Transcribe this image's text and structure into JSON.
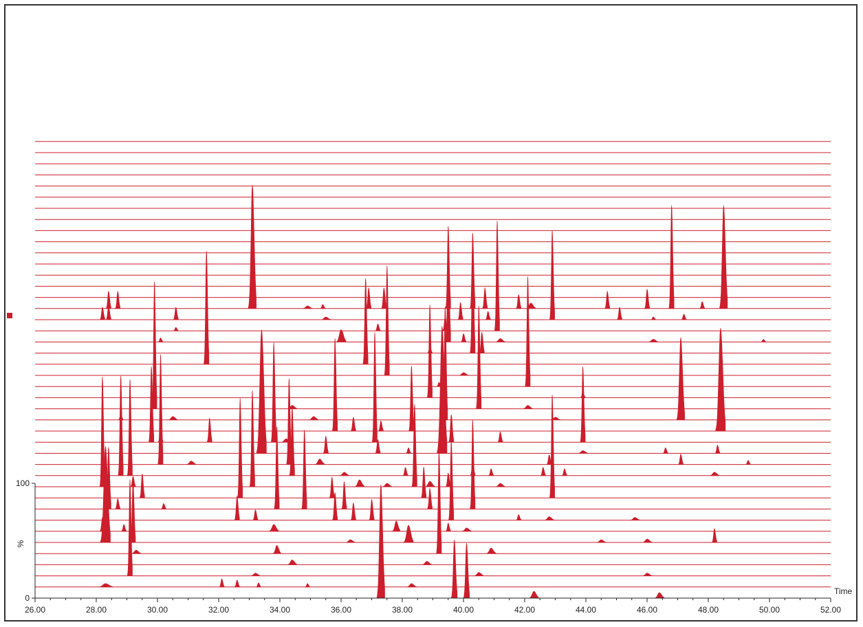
{
  "colors": {
    "trace": "#cc1e2c",
    "axis": "#222222",
    "frame": "#333333"
  },
  "chart_data": {
    "type": "line",
    "title": "",
    "xlabel": "Time",
    "ylabel": "%",
    "y_ticks": [
      "100",
      "0"
    ],
    "xlim": [
      26.0,
      52.0
    ],
    "ylim": [
      0,
      100
    ],
    "x_ticks": [
      "26.00",
      "28.00",
      "30.00",
      "32.00",
      "34.00",
      "36.00",
      "38.00",
      "40.00",
      "42.00",
      "44.00",
      "46.00",
      "48.00",
      "50.00",
      "52.00"
    ],
    "trace_count": 42,
    "grid": false,
    "legend": "none",
    "series": [
      {
        "baseline": 0,
        "peaks": [
          [
            37.3,
            165,
            0.08
          ],
          [
            39.7,
            85,
            0.06
          ],
          [
            40.1,
            80,
            0.06
          ],
          [
            42.3,
            10,
            0.1
          ],
          [
            46.4,
            8,
            0.1
          ]
        ]
      },
      {
        "baseline": 1,
        "peaks": [
          [
            28.3,
            5,
            0.15
          ],
          [
            32.1,
            12,
            0.05
          ],
          [
            32.6,
            10,
            0.05
          ],
          [
            33.3,
            6,
            0.05
          ],
          [
            34.9,
            5,
            0.05
          ],
          [
            38.3,
            5,
            0.1
          ]
        ]
      },
      {
        "baseline": 2,
        "peaks": [
          [
            29.1,
            140,
            0.05
          ],
          [
            33.2,
            4,
            0.1
          ],
          [
            40.5,
            5,
            0.1
          ],
          [
            46.0,
            4,
            0.1
          ]
        ]
      },
      {
        "baseline": 3,
        "peaks": [
          [
            34.4,
            7,
            0.1
          ],
          [
            38.8,
            5,
            0.1
          ]
        ]
      },
      {
        "baseline": 4,
        "peaks": [
          [
            29.3,
            5,
            0.1
          ],
          [
            33.9,
            12,
            0.08
          ],
          [
            39.2,
            150,
            0.05
          ],
          [
            40.9,
            8,
            0.1
          ]
        ]
      },
      {
        "baseline": 5,
        "peaks": [
          [
            28.3,
            140,
            0.1
          ],
          [
            29.2,
            90,
            0.05
          ],
          [
            36.3,
            4,
            0.1
          ],
          [
            38.2,
            25,
            0.1
          ],
          [
            44.5,
            4,
            0.1
          ],
          [
            46.0,
            5,
            0.1
          ],
          [
            48.2,
            20,
            0.05
          ]
        ]
      },
      {
        "baseline": 6,
        "peaks": [
          [
            28.2,
            20,
            0.05
          ],
          [
            28.9,
            10,
            0.05
          ],
          [
            33.8,
            10,
            0.1
          ],
          [
            37.8,
            15,
            0.08
          ],
          [
            39.5,
            12,
            0.05
          ],
          [
            40.1,
            5,
            0.1
          ]
        ]
      },
      {
        "baseline": 7,
        "peaks": [
          [
            32.6,
            35,
            0.05
          ],
          [
            33.2,
            15,
            0.05
          ],
          [
            35.8,
            40,
            0.05
          ],
          [
            36.4,
            25,
            0.05
          ],
          [
            37.0,
            30,
            0.05
          ],
          [
            39.6,
            115,
            0.05
          ],
          [
            41.8,
            8,
            0.05
          ],
          [
            42.8,
            5,
            0.1
          ],
          [
            45.6,
            4,
            0.1
          ]
        ]
      },
      {
        "baseline": 8,
        "peaks": [
          [
            28.4,
            90,
            0.05
          ],
          [
            28.7,
            15,
            0.05
          ],
          [
            30.2,
            8,
            0.05
          ],
          [
            33.9,
            120,
            0.05
          ],
          [
            34.8,
            115,
            0.05
          ],
          [
            36.1,
            40,
            0.05
          ],
          [
            38.9,
            30,
            0.05
          ],
          [
            40.3,
            130,
            0.05
          ]
        ]
      },
      {
        "baseline": 9,
        "peaks": [
          [
            29.5,
            35,
            0.05
          ],
          [
            32.7,
            145,
            0.05
          ],
          [
            35.7,
            30,
            0.05
          ],
          [
            38.7,
            45,
            0.05
          ],
          [
            42.9,
            150,
            0.05
          ]
        ]
      },
      {
        "baseline": 10,
        "peaks": [
          [
            28.2,
            160,
            0.05
          ],
          [
            29.2,
            15,
            0.05
          ],
          [
            33.1,
            140,
            0.05
          ],
          [
            36.6,
            10,
            0.1
          ],
          [
            37.5,
            5,
            0.1
          ],
          [
            38.4,
            120,
            0.05
          ],
          [
            38.9,
            8,
            0.1
          ],
          [
            39.5,
            20,
            0.05
          ],
          [
            41.2,
            5,
            0.1
          ]
        ]
      },
      {
        "baseline": 11,
        "peaks": [
          [
            28.8,
            145,
            0.05
          ],
          [
            29.1,
            140,
            0.05
          ],
          [
            34.4,
            100,
            0.05
          ],
          [
            36.1,
            5,
            0.1
          ],
          [
            38.1,
            12,
            0.05
          ],
          [
            40.3,
            20,
            0.05
          ],
          [
            40.9,
            10,
            0.05
          ],
          [
            42.6,
            12,
            0.05
          ],
          [
            43.3,
            10,
            0.05
          ],
          [
            48.2,
            5,
            0.1
          ]
        ]
      },
      {
        "baseline": 12,
        "peaks": [
          [
            30.1,
            160,
            0.05
          ],
          [
            31.1,
            5,
            0.1
          ],
          [
            34.3,
            125,
            0.05
          ],
          [
            35.3,
            8,
            0.1
          ],
          [
            42.8,
            14,
            0.05
          ],
          [
            47.1,
            15,
            0.05
          ],
          [
            49.3,
            6,
            0.05
          ]
        ]
      },
      {
        "baseline": 13,
        "peaks": [
          [
            33.4,
            180,
            0.1
          ],
          [
            35.5,
            25,
            0.05
          ],
          [
            37.2,
            20,
            0.05
          ],
          [
            38.2,
            8,
            0.05
          ],
          [
            39.3,
            185,
            0.1
          ],
          [
            43.9,
            4,
            0.1
          ],
          [
            46.6,
            8,
            0.05
          ],
          [
            48.3,
            12,
            0.05
          ]
        ]
      },
      {
        "baseline": 14,
        "peaks": [
          [
            29.8,
            110,
            0.05
          ],
          [
            30.1,
            20,
            0.05
          ],
          [
            31.7,
            35,
            0.05
          ],
          [
            33.8,
            145,
            0.05
          ],
          [
            34.2,
            5,
            0.1
          ],
          [
            37.1,
            160,
            0.05
          ],
          [
            39.6,
            40,
            0.05
          ],
          [
            41.2,
            15,
            0.05
          ],
          [
            43.9,
            110,
            0.05
          ]
        ]
      },
      {
        "baseline": 15,
        "peaks": [
          [
            35.8,
            135,
            0.05
          ],
          [
            36.4,
            20,
            0.05
          ],
          [
            37.3,
            15,
            0.05
          ],
          [
            38.3,
            95,
            0.05
          ],
          [
            48.4,
            150,
            0.1
          ]
        ]
      },
      {
        "baseline": 16,
        "peaks": [
          [
            28.8,
            8,
            0.05
          ],
          [
            30.5,
            5,
            0.1
          ],
          [
            35.1,
            5,
            0.1
          ],
          [
            39.4,
            165,
            0.05
          ],
          [
            43.0,
            4,
            0.1
          ],
          [
            47.1,
            120,
            0.08
          ]
        ]
      },
      {
        "baseline": 17,
        "peaks": [
          [
            29.9,
            185,
            0.05
          ],
          [
            34.4,
            5,
            0.1
          ],
          [
            40.5,
            150,
            0.05
          ],
          [
            42.1,
            5,
            0.1
          ]
        ]
      },
      {
        "baseline": 18,
        "peaks": [
          [
            38.9,
            135,
            0.05
          ],
          [
            39.3,
            15,
            0.05
          ],
          [
            43.9,
            8,
            0.05
          ]
        ]
      },
      {
        "baseline": 19,
        "peaks": [
          [
            39.2,
            6,
            0.05
          ],
          [
            42.1,
            160,
            0.05
          ]
        ]
      },
      {
        "baseline": 20,
        "peaks": [
          [
            37.5,
            160,
            0.05
          ],
          [
            40.0,
            4,
            0.1
          ]
        ]
      },
      {
        "baseline": 21,
        "peaks": [
          [
            31.6,
            165,
            0.05
          ],
          [
            36.8,
            125,
            0.05
          ]
        ]
      },
      {
        "baseline": 22,
        "peaks": [
          [
            38.9,
            10,
            0.05
          ],
          [
            40.3,
            155,
            0.05
          ],
          [
            40.6,
            30,
            0.05
          ]
        ]
      },
      {
        "baseline": 23,
        "peaks": [
          [
            30.1,
            6,
            0.05
          ],
          [
            36.0,
            18,
            0.1
          ],
          [
            39.5,
            150,
            0.05
          ],
          [
            40.0,
            12,
            0.05
          ],
          [
            41.2,
            5,
            0.1
          ],
          [
            46.2,
            4,
            0.1
          ],
          [
            49.8,
            4,
            0.05
          ]
        ]
      },
      {
        "baseline": 24,
        "peaks": [
          [
            30.6,
            5,
            0.05
          ],
          [
            37.2,
            10,
            0.05
          ],
          [
            39.4,
            20,
            0.05
          ],
          [
            41.1,
            160,
            0.05
          ]
        ]
      },
      {
        "baseline": 25,
        "peaks": [
          [
            28.2,
            18,
            0.05
          ],
          [
            28.4,
            20,
            0.05
          ],
          [
            30.6,
            18,
            0.05
          ],
          [
            35.5,
            4,
            0.1
          ],
          [
            39.9,
            25,
            0.05
          ],
          [
            40.8,
            12,
            0.05
          ],
          [
            42.9,
            130,
            0.05
          ],
          [
            45.1,
            18,
            0.05
          ],
          [
            46.2,
            4,
            0.05
          ],
          [
            47.2,
            8,
            0.05
          ]
        ]
      },
      {
        "baseline": 26,
        "peaks": [
          [
            28.4,
            25,
            0.05
          ],
          [
            28.7,
            25,
            0.05
          ],
          [
            33.1,
            180,
            0.08
          ],
          [
            34.9,
            4,
            0.1
          ],
          [
            35.4,
            6,
            0.05
          ],
          [
            36.9,
            30,
            0.05
          ],
          [
            37.4,
            30,
            0.05
          ],
          [
            39.5,
            120,
            0.05
          ],
          [
            40.3,
            110,
            0.05
          ],
          [
            40.7,
            30,
            0.05
          ],
          [
            41.8,
            20,
            0.05
          ],
          [
            42.2,
            8,
            0.1
          ],
          [
            44.7,
            25,
            0.05
          ],
          [
            46.0,
            28,
            0.05
          ],
          [
            46.8,
            150,
            0.05
          ],
          [
            47.8,
            10,
            0.05
          ],
          [
            48.5,
            150,
            0.08
          ]
        ]
      }
    ]
  }
}
